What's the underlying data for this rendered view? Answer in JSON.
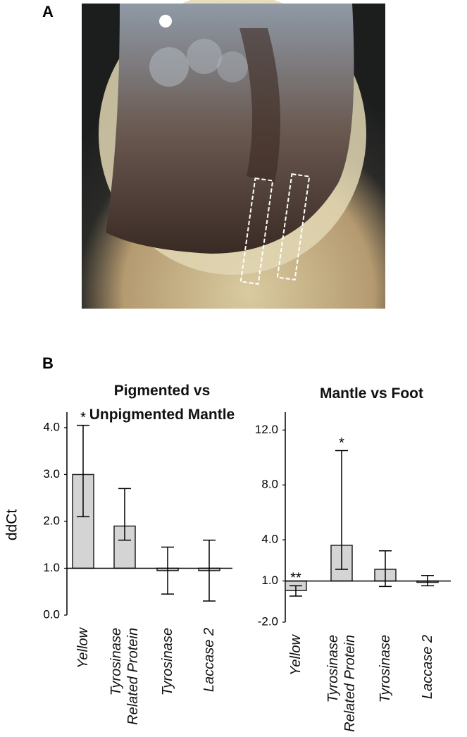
{
  "panels": [
    "A",
    "B"
  ],
  "y_label": "ddCt",
  "chart_data": [
    {
      "type": "bar",
      "title": "Pigmented vs Unpigmented Mantle",
      "categories": [
        "Yellow",
        "Tyrosinase Related Protein",
        "Tyrosinase",
        "Laccase 2"
      ],
      "values": [
        3.0,
        1.9,
        0.95,
        0.95
      ],
      "ci_low": [
        2.1,
        1.6,
        0.45,
        0.3
      ],
      "ci_high": [
        4.05,
        2.7,
        1.45,
        1.6
      ],
      "significance": [
        "*",
        null,
        null,
        null
      ],
      "baseline": 1.0,
      "color": "#d4d4d4",
      "ylim": [
        0,
        4.33
      ],
      "yticks": [
        {
          "value": 0,
          "label": "0.0"
        },
        {
          "value": 1,
          "label": "1.0"
        },
        {
          "value": 2,
          "label": "2.0"
        },
        {
          "value": 3,
          "label": "3.0"
        },
        {
          "value": 4,
          "label": "4.0"
        }
      ]
    },
    {
      "type": "bar",
      "title": "Mantle vs Foot",
      "categories": [
        "Yellow",
        "Tyrosinase Related Protein",
        "Tyrosinase",
        "Laccase 2"
      ],
      "values": [
        0.3,
        3.6,
        1.85,
        0.9
      ],
      "ci_low": [
        -0.1,
        1.85,
        0.6,
        0.65
      ],
      "ci_high": [
        0.65,
        10.5,
        3.2,
        1.4
      ],
      "significance": [
        "**",
        "*",
        null,
        null
      ],
      "baseline": 1.0,
      "color": "#d4d4d4",
      "ylim": [
        -2,
        13.3
      ],
      "yticks": [
        {
          "value": -2,
          "label": "-2.0"
        },
        {
          "value": 1,
          "label": "1.0"
        },
        {
          "value": 4,
          "label": "4.0"
        },
        {
          "value": 8,
          "label": "8.0"
        },
        {
          "value": 12,
          "label": "12.0"
        }
      ]
    }
  ]
}
